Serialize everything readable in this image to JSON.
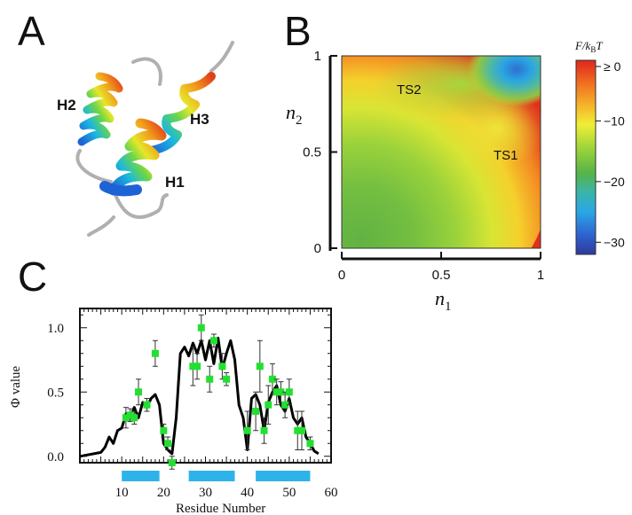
{
  "panels": {
    "a": "A",
    "b": "B",
    "c": "C"
  },
  "panel_a": {
    "helix_labels": [
      "H2",
      "H3",
      "H1"
    ]
  },
  "colors": {
    "helix_gradient": [
      "#1e63d6",
      "#19b7e0",
      "#6ad64a",
      "#e6e629",
      "#f29a1c",
      "#e0401a"
    ],
    "loop": "#b0b0b0",
    "bar": "#2db3ea",
    "points": "#22e030",
    "curve": "#000000"
  },
  "chart_data": [
    {
      "type": "heatmap",
      "panel": "B",
      "xlabel": "n",
      "xlabel_sub": "1",
      "ylabel": "n",
      "ylabel_sub": "2",
      "xlim": [
        0,
        1
      ],
      "ylim": [
        0,
        1
      ],
      "xticks": [
        "0",
        "0.5",
        "1"
      ],
      "yticks": [
        "0",
        "0.5",
        "1"
      ],
      "annotations": [
        {
          "text": "TS2",
          "x": 0.35,
          "y": 0.87
        },
        {
          "text": "TS1",
          "x": 0.76,
          "y": 0.5
        }
      ],
      "minima": [
        {
          "x": 0.27,
          "y": 0.28,
          "F": -13
        },
        {
          "x": 0.88,
          "y": 0.92,
          "F": -30
        }
      ],
      "colorbar": {
        "title": "F/k",
        "title_sub": "B",
        "title_tail": "T",
        "ticks": [
          "≥ 0",
          "−10",
          "−20",
          "−30"
        ],
        "tick_values": [
          0,
          -10,
          -20,
          -30
        ],
        "range": [
          -32,
          0
        ],
        "colors": [
          "#e0251d",
          "#f06a20",
          "#f5b92a",
          "#f0ee35",
          "#9ed53a",
          "#56b447",
          "#3ab5a8",
          "#2aa6e6",
          "#2e62cf",
          "#2f3a9a"
        ]
      }
    },
    {
      "type": "line",
      "panel": "C",
      "xlabel": "Residue Number",
      "ylabel": "Φ  value",
      "xlim": [
        0,
        60
      ],
      "ylim": [
        -0.05,
        1.15
      ],
      "xticks": [
        "10",
        "20",
        "30",
        "40",
        "50",
        "60"
      ],
      "xtick_values": [
        10,
        20,
        30,
        40,
        50,
        60
      ],
      "yticks": [
        "0.0",
        "0.5",
        "1.0"
      ],
      "ytick_values": [
        0,
        0.5,
        1.0
      ],
      "helix_bars": [
        [
          10,
          19
        ],
        [
          26,
          37
        ],
        [
          42,
          55
        ]
      ],
      "curve": {
        "x": [
          0,
          5,
          6,
          7,
          8,
          9,
          10,
          11,
          12,
          13,
          14,
          15,
          16,
          17,
          18,
          19,
          20,
          21,
          22,
          23,
          24,
          25,
          26,
          27,
          28,
          29,
          30,
          31,
          32,
          33,
          34,
          35,
          36,
          37,
          38,
          39,
          40,
          41,
          42,
          43,
          44,
          45,
          46,
          47,
          48,
          49,
          50,
          51,
          52,
          53,
          54,
          55,
          56,
          57
        ],
        "y": [
          0,
          0.03,
          0.07,
          0.15,
          0.1,
          0.2,
          0.22,
          0.33,
          0.3,
          0.38,
          0.3,
          0.42,
          0.38,
          0.45,
          0.48,
          0.4,
          0.1,
          0.05,
          0.02,
          0.3,
          0.8,
          0.85,
          0.78,
          0.88,
          0.8,
          0.9,
          0.75,
          0.9,
          0.72,
          0.92,
          0.68,
          0.8,
          0.9,
          0.75,
          0.4,
          0.3,
          0.05,
          0.45,
          0.48,
          0.4,
          0.2,
          0.42,
          0.5,
          0.55,
          0.4,
          0.35,
          0.45,
          0.3,
          0.25,
          0.3,
          0.15,
          0.1,
          0.04,
          0.02
        ]
      },
      "points": {
        "x": [
          11,
          12,
          13,
          14,
          16,
          18,
          20,
          21,
          22,
          27,
          28,
          29,
          31,
          32,
          34,
          35,
          40,
          42,
          43,
          44,
          45,
          46,
          47,
          48,
          49,
          50,
          52,
          53,
          55
        ],
        "y": [
          0.3,
          0.32,
          0.3,
          0.5,
          0.4,
          0.8,
          0.2,
          0.1,
          -0.05,
          0.7,
          0.7,
          1.0,
          0.6,
          0.9,
          0.7,
          0.6,
          0.2,
          0.35,
          0.7,
          0.2,
          0.4,
          0.6,
          0.5,
          0.5,
          0.4,
          0.5,
          0.2,
          0.2,
          0.1
        ],
        "err": [
          0.08,
          0.05,
          0.05,
          0.1,
          0.05,
          0.1,
          0.05,
          0.05,
          0.05,
          0.15,
          0.1,
          0.1,
          0.1,
          0.05,
          0.1,
          0.05,
          0.15,
          0.15,
          0.2,
          0.1,
          0.15,
          0.12,
          0.1,
          0.08,
          0.1,
          0.1,
          0.15,
          0.15,
          0.05
        ]
      }
    }
  ]
}
